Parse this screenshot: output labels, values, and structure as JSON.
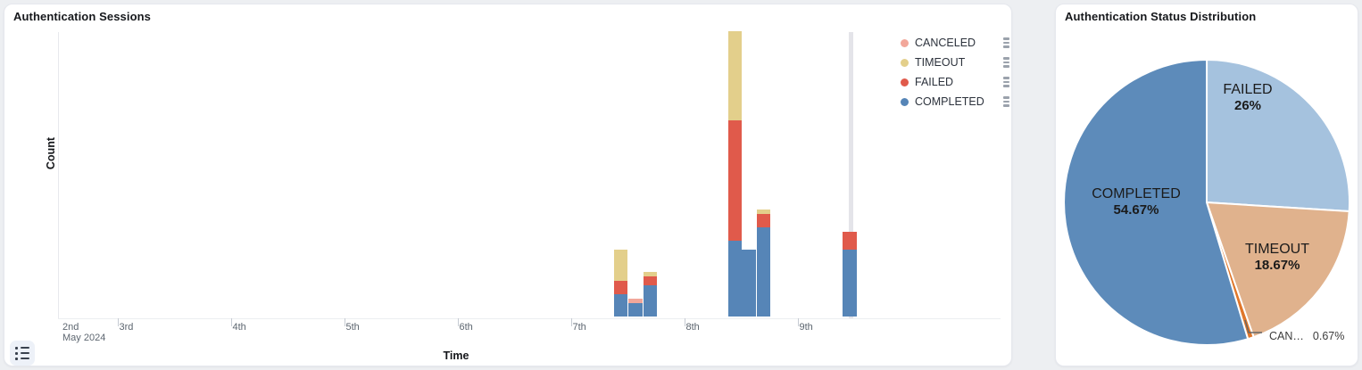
{
  "left_panel": {
    "title": "Authentication Sessions",
    "x_axis_title": "Time",
    "y_axis_title": "Count",
    "x_axis": {
      "month_label": "May 2024",
      "ticks": [
        {
          "label": "2nd",
          "sub": "May 2024",
          "t": 0.0,
          "tick_mark": false
        },
        {
          "label": "3rd",
          "t": 0.5,
          "tick_mark": true
        },
        {
          "label": "4th",
          "t": 1.5,
          "tick_mark": true
        },
        {
          "label": "5th",
          "t": 2.5,
          "tick_mark": true
        },
        {
          "label": "6th",
          "t": 3.5,
          "tick_mark": true
        },
        {
          "label": "7th",
          "t": 4.5,
          "tick_mark": true
        },
        {
          "label": "8th",
          "t": 5.5,
          "tick_mark": true
        },
        {
          "label": "9th",
          "t": 6.5,
          "tick_mark": true
        }
      ]
    },
    "legend": [
      {
        "label": "CANCELED",
        "color": "#f2a79a"
      },
      {
        "label": "TIMEOUT",
        "color": "#e3cf8b"
      },
      {
        "label": "FAILED",
        "color": "#e05a4b"
      },
      {
        "label": "COMPLETED",
        "color": "#5685b7"
      }
    ],
    "chart_data": {
      "type": "bar",
      "stacked": true,
      "title": "Authentication Sessions",
      "xlabel": "Time",
      "ylabel": "Count",
      "x_axis_range": [
        "May 2 2024 (12:00)",
        "May 9 2024 (~12:00)"
      ],
      "ylim": [
        0,
        64
      ],
      "y_tick_labels_shown": false,
      "grid": false,
      "legend_position": "top-right",
      "stack_order_bottom_to_top": [
        "COMPLETED",
        "FAILED",
        "TIMEOUT",
        "CANCELED"
      ],
      "series_colors": {
        "COMPLETED": "#5685b7",
        "FAILED": "#e05a4b",
        "TIMEOUT": "#e3cf8b",
        "CANCELED": "#f2a79a"
      },
      "bars": [
        {
          "time": "May 7 ~10:30",
          "t": 4.94,
          "COMPLETED": 5,
          "FAILED": 3,
          "TIMEOUT": 7,
          "CANCELED": 0
        },
        {
          "time": "May 7 ~13:30",
          "t": 5.07,
          "COMPLETED": 3,
          "FAILED": 0,
          "TIMEOUT": 0,
          "CANCELED": 1
        },
        {
          "time": "May 7 ~16:30",
          "t": 5.2,
          "COMPLETED": 7,
          "FAILED": 2,
          "TIMEOUT": 1,
          "CANCELED": 0
        },
        {
          "time": "May 8 ~10:30",
          "t": 5.95,
          "COMPLETED": 17,
          "FAILED": 27,
          "TIMEOUT": 20,
          "CANCELED": 0
        },
        {
          "time": "May 8 ~13:30",
          "t": 6.07,
          "COMPLETED": 15,
          "FAILED": 0,
          "TIMEOUT": 0,
          "CANCELED": 0
        },
        {
          "time": "May 8 ~16:30",
          "t": 6.2,
          "COMPLETED": 20,
          "FAILED": 3,
          "TIMEOUT": 1,
          "CANCELED": 0
        },
        {
          "time": "May 9 ~10:30",
          "t": 6.96,
          "COMPLETED": 15,
          "FAILED": 4,
          "TIMEOUT": 0,
          "CANCELED": 0
        }
      ],
      "marker_line_t": 6.97,
      "values_note": "counts estimated from bar pixel heights; no numeric y labels shown"
    }
  },
  "right_panel": {
    "title": "Authentication Status Distribution",
    "chart_data": {
      "type": "pie",
      "title": "Authentication Status Distribution",
      "start_angle": "12 o'clock",
      "direction": "clockwise",
      "slices": [
        {
          "label": "FAILED",
          "value_pct": 26,
          "color": "#a5c2de"
        },
        {
          "label": "TIMEOUT",
          "value_pct": 18.67,
          "color": "#e0b28d"
        },
        {
          "label": "CANCELED",
          "value_pct": 0.67,
          "color": "#e0772b"
        },
        {
          "label": "COMPLETED",
          "value_pct": 54.67,
          "color": "#5d8bba"
        }
      ]
    },
    "inside_labels": [
      {
        "name": "FAILED",
        "pct": "26%"
      },
      {
        "name": "COMPLETED",
        "pct": "54.67%"
      },
      {
        "name": "TIMEOUT",
        "pct": "18.67%"
      }
    ],
    "outside_label": {
      "name": "CAN…",
      "pct": "0.67%"
    }
  }
}
